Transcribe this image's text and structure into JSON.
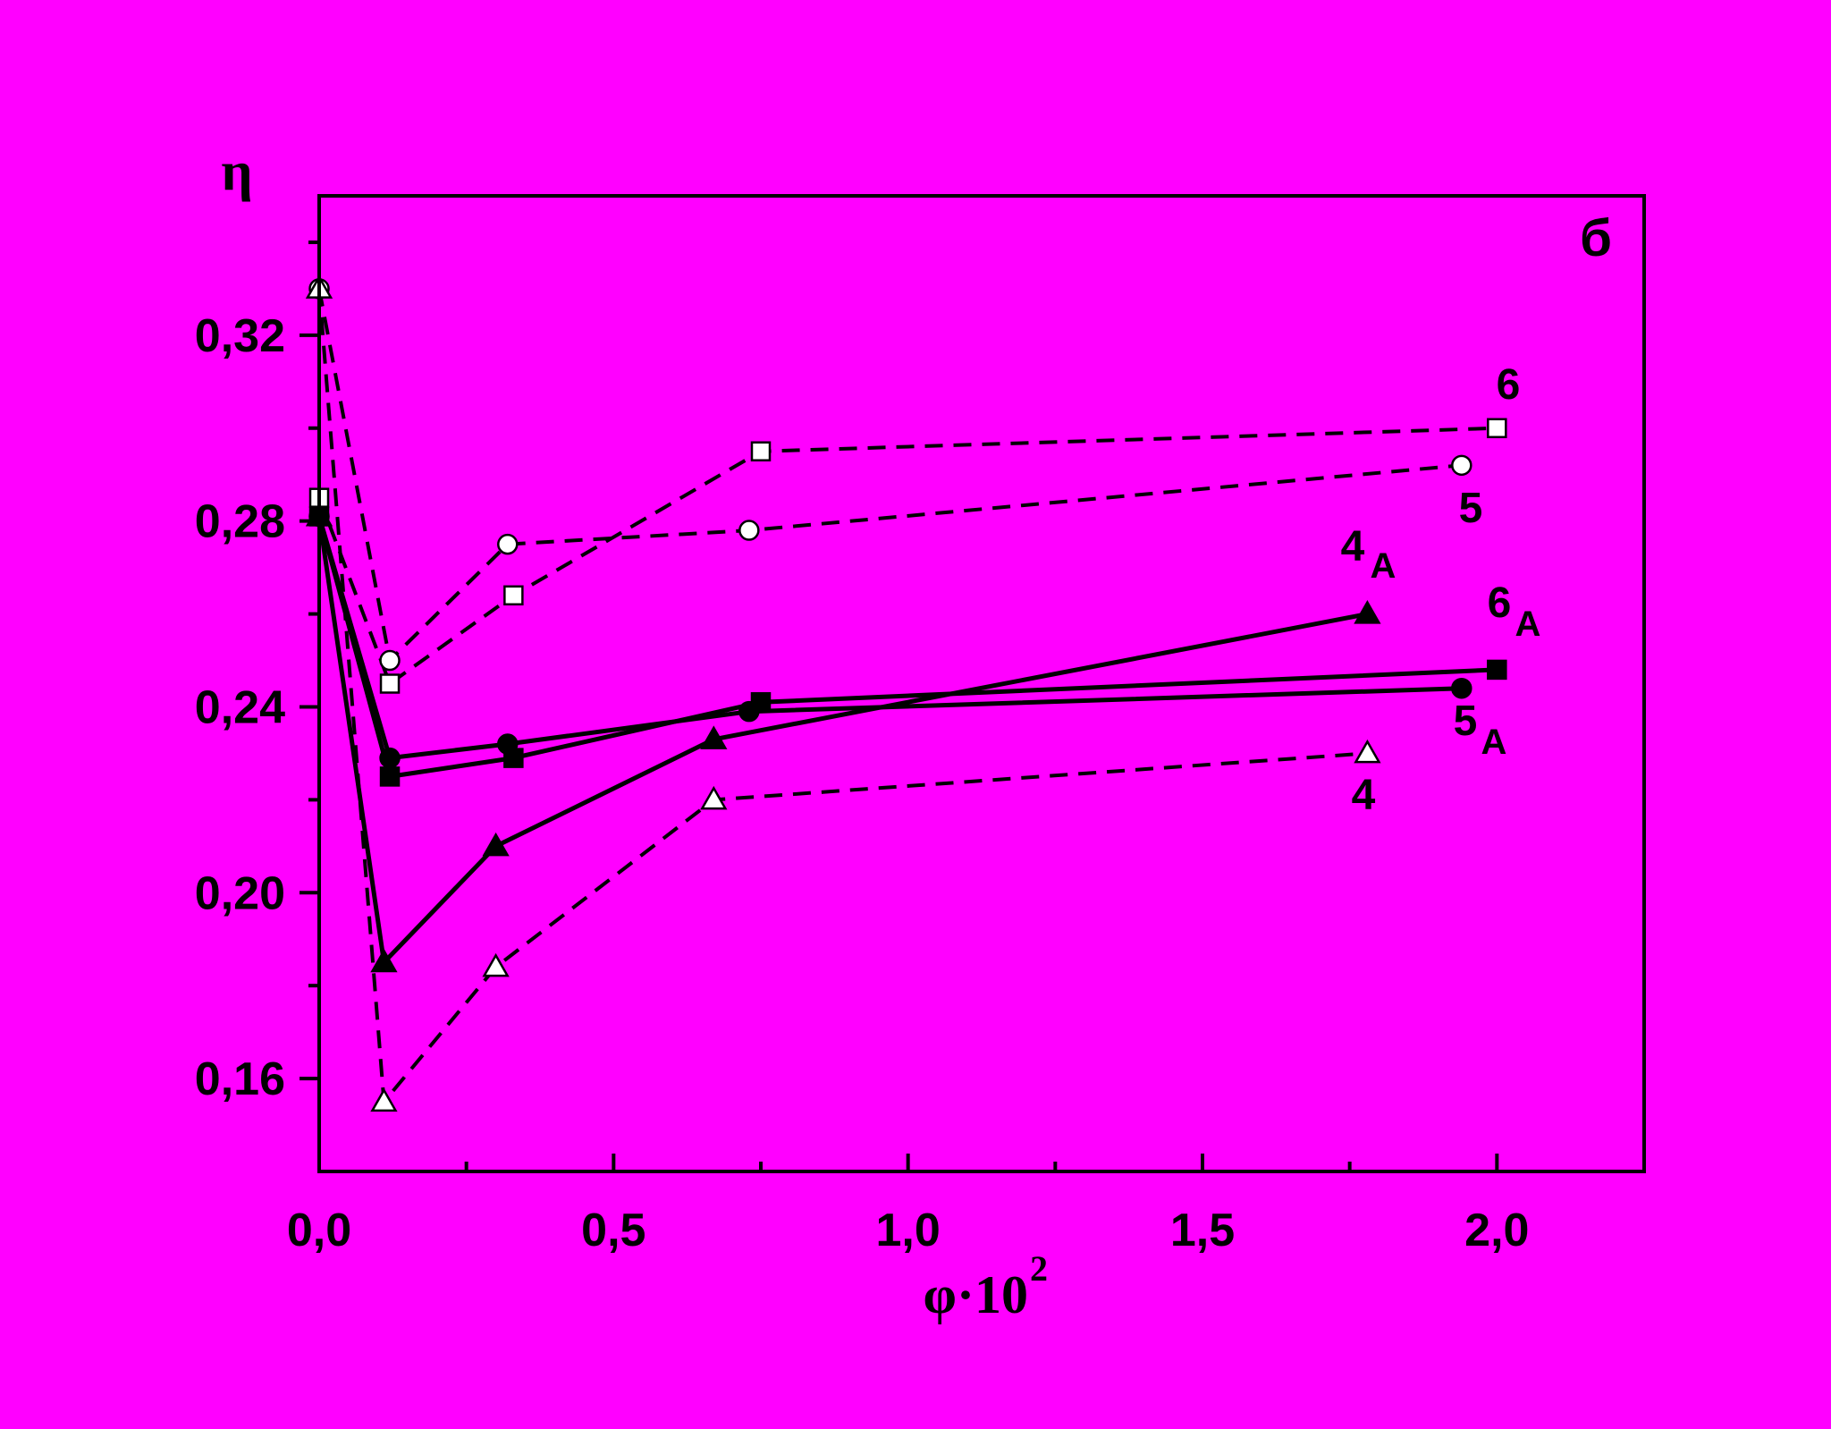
{
  "chart_data": {
    "type": "line",
    "panel_label": "б",
    "ylabel": "η",
    "xlabel_base": "φ·10",
    "xlabel_exp": "2",
    "xlim": [
      0,
      2.25
    ],
    "ylim": [
      0.14,
      0.35
    ],
    "x_ticks": [
      0.0,
      0.5,
      1.0,
      1.5,
      2.0
    ],
    "x_tick_labels": [
      "0,0",
      "0,5",
      "1,0",
      "1,5",
      "2,0"
    ],
    "x_minor_ticks": [
      0.25,
      0.75,
      1.25,
      1.75
    ],
    "y_ticks": [
      0.16,
      0.2,
      0.24,
      0.28,
      0.32
    ],
    "y_tick_labels": [
      "0,16",
      "0,20",
      "0,24",
      "0,28",
      "0,32"
    ],
    "y_minor_ticks": [
      0.18,
      0.22,
      0.26,
      0.3,
      0.34
    ],
    "grid": false,
    "colors": {
      "background": "#ff00ff",
      "outer": "#000000",
      "ink": "#000000",
      "open_marker_fill": "#ffffff"
    },
    "series": [
      {
        "name": "6",
        "label_main": "6",
        "label_sub": "",
        "marker": "square",
        "filled": false,
        "dashed": true,
        "x": [
          0.0,
          0.12,
          0.33,
          0.75,
          2.0
        ],
        "y": [
          0.285,
          0.245,
          0.264,
          0.295,
          0.3
        ]
      },
      {
        "name": "5",
        "label_main": "5",
        "label_sub": "",
        "marker": "circle",
        "filled": false,
        "dashed": true,
        "x": [
          0.0,
          0.12,
          0.32,
          0.73,
          1.94
        ],
        "y": [
          0.33,
          0.25,
          0.275,
          0.278,
          0.292
        ]
      },
      {
        "name": "4",
        "label_main": "4",
        "label_sub": "",
        "marker": "triangle",
        "filled": false,
        "dashed": true,
        "x": [
          0.0,
          0.11,
          0.3,
          0.67,
          1.78
        ],
        "y": [
          0.33,
          0.155,
          0.184,
          0.22,
          0.23
        ]
      },
      {
        "name": "4A",
        "label_main": "4",
        "label_sub": "A",
        "marker": "triangle",
        "filled": true,
        "dashed": false,
        "x": [
          0.0,
          0.11,
          0.3,
          0.67,
          1.78
        ],
        "y": [
          0.281,
          0.185,
          0.21,
          0.233,
          0.26
        ]
      },
      {
        "name": "5A",
        "label_main": "5",
        "label_sub": "A",
        "marker": "circle",
        "filled": true,
        "dashed": false,
        "x": [
          0.0,
          0.12,
          0.32,
          0.73,
          1.94
        ],
        "y": [
          0.281,
          0.229,
          0.232,
          0.239,
          0.244
        ]
      },
      {
        "name": "6A",
        "label_main": "6",
        "label_sub": "A",
        "marker": "square",
        "filled": true,
        "dashed": false,
        "x": [
          0.0,
          0.12,
          0.33,
          0.75,
          2.0
        ],
        "y": [
          0.281,
          0.225,
          0.229,
          0.241,
          0.248
        ]
      }
    ]
  }
}
